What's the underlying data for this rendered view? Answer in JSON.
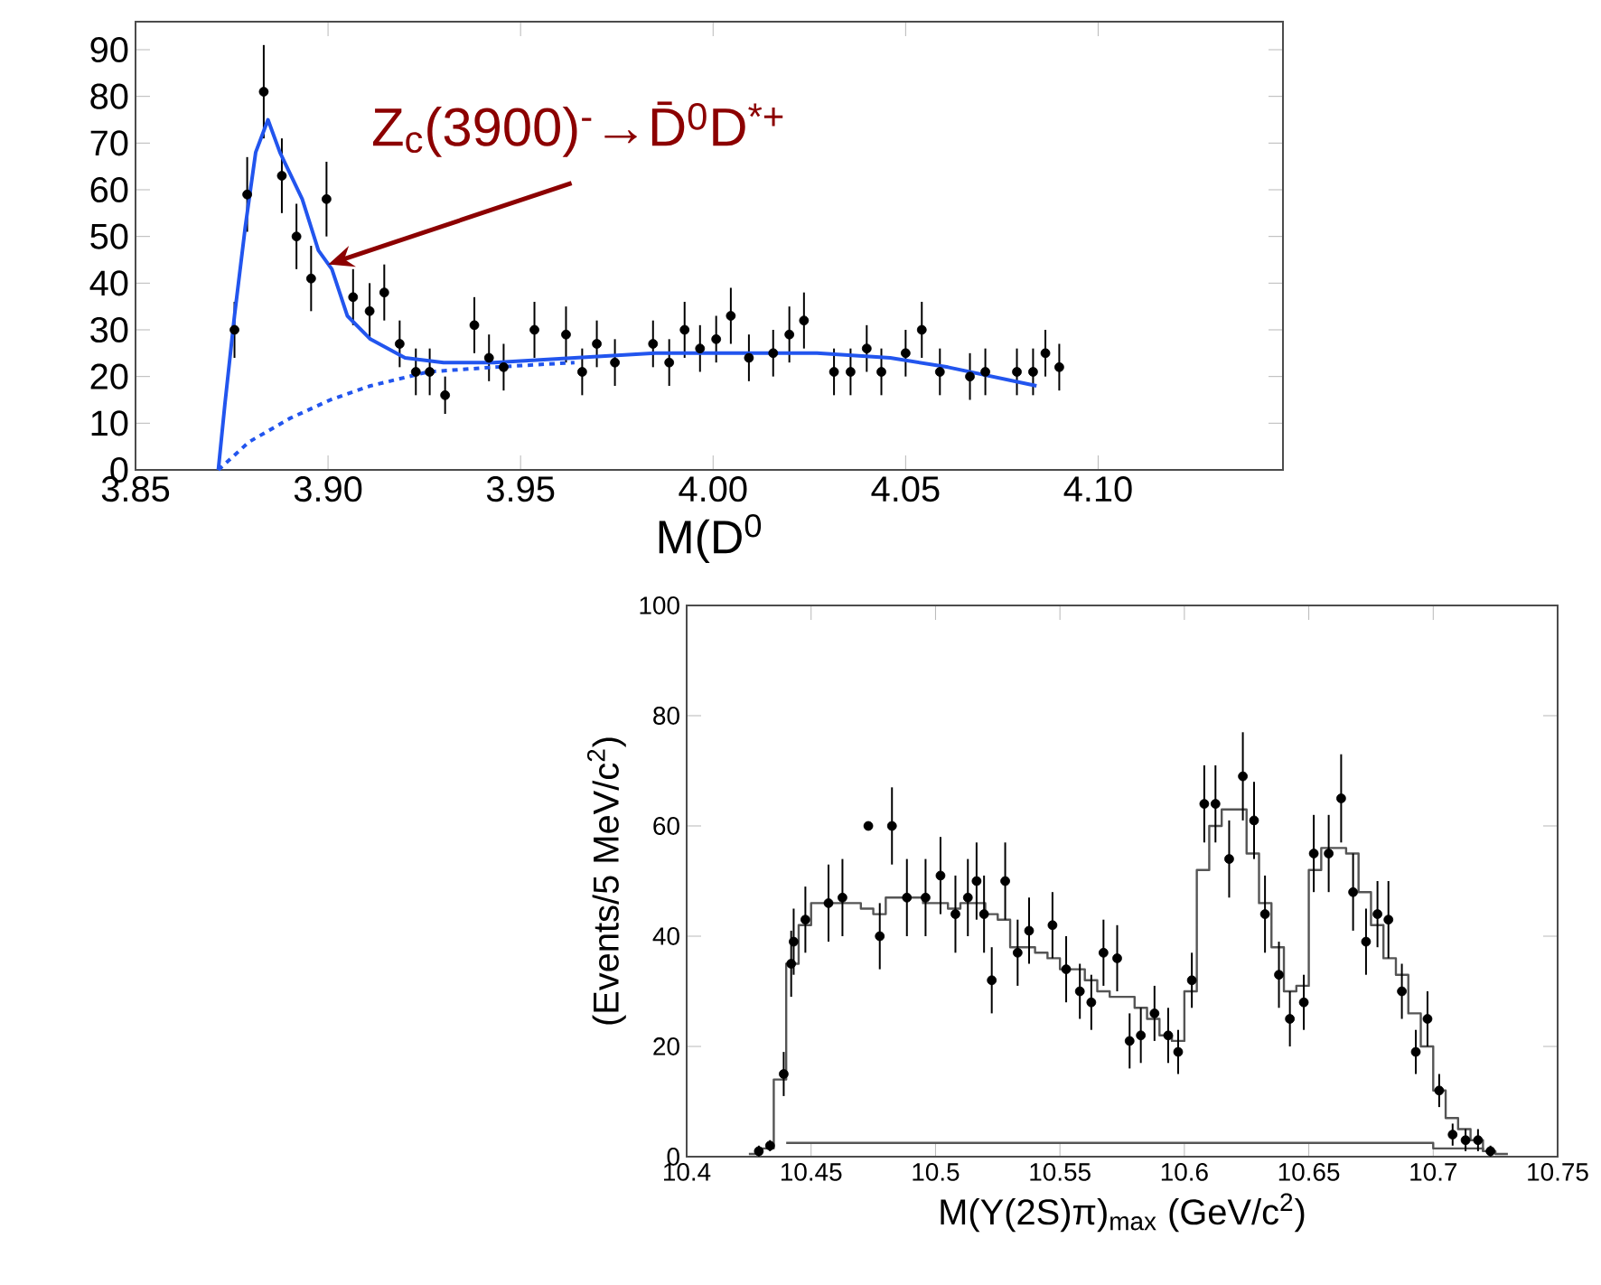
{
  "chart_data": [
    {
      "type": "scatter",
      "xlabel": "M(D$^{0}$",
      "xlim": [
        3.85,
        4.148
      ],
      "ylim": [
        0,
        96
      ],
      "xticks": [
        {
          "value": 3.85,
          "label": "3.85"
        },
        {
          "value": 3.9,
          "label": "3.90"
        },
        {
          "value": 3.95,
          "label": "3.95"
        },
        {
          "value": 4.0,
          "label": "4.00"
        },
        {
          "value": 4.05,
          "label": "4.05"
        },
        {
          "value": 4.1,
          "label": "4.10"
        }
      ],
      "yticks": [
        0,
        10,
        20,
        30,
        40,
        50,
        60,
        70,
        80,
        90
      ],
      "annotations": [
        {
          "text": "Z$_{c}$(3900)$^{-}$→D̄$^{0}$D$^{*+}$",
          "x": 3.9,
          "y": 44
        }
      ],
      "series": [
        {
          "type": "scatter",
          "marker": "circle",
          "color": "#000000",
          "x": [
            3.8757,
            3.879,
            3.8833,
            3.888,
            3.8918,
            3.8956,
            3.8996,
            3.9065,
            3.9108,
            3.9146,
            3.9186,
            3.9228,
            3.9264,
            3.9304,
            3.938,
            3.9418,
            3.9456,
            3.9536,
            3.9618,
            3.966,
            3.9698,
            3.9745,
            3.9844,
            3.9886,
            3.9926,
            3.9966,
            4.0008,
            4.0046,
            4.0093,
            4.0156,
            4.0198,
            4.0236,
            4.0314,
            4.0357,
            4.0399,
            4.0437,
            4.05,
            4.0542,
            4.0589,
            4.0667,
            4.0707,
            4.0789,
            4.0831,
            4.0863,
            4.0899
          ],
          "values": [
            30,
            59,
            81,
            63,
            50,
            41,
            58,
            37,
            34,
            38,
            27,
            21,
            21,
            16,
            31,
            24,
            22,
            30,
            29,
            21,
            27,
            23,
            27,
            23,
            30,
            26,
            28,
            33,
            24,
            25,
            29,
            32,
            21,
            21,
            26,
            21,
            25,
            30,
            21,
            20,
            21,
            21,
            21,
            25,
            22
          ],
          "errors": [
            6,
            8,
            10,
            8,
            7,
            7,
            8,
            6,
            6,
            6,
            5,
            5,
            5,
            4,
            6,
            5,
            5,
            6,
            6,
            5,
            5,
            5,
            5,
            5,
            6,
            5,
            5,
            6,
            5,
            5,
            6,
            6,
            5,
            5,
            5,
            5,
            5,
            6,
            5,
            5,
            5,
            5,
            5,
            5,
            5
          ]
        },
        {
          "type": "line",
          "marker": "none",
          "line_style": "solid",
          "color": "#2255ee",
          "x": [
            3.8715,
            3.8732,
            3.8757,
            3.8785,
            3.8812,
            3.8844,
            3.8875,
            3.8933,
            3.8975,
            3.901,
            3.905,
            3.911,
            3.92,
            3.93,
            3.943,
            3.964,
            3.985,
            4.006,
            4.027,
            4.046,
            4.061,
            4.084
          ],
          "values": [
            0,
            14,
            33,
            52,
            68,
            75,
            68,
            58,
            47,
            43,
            33,
            28,
            24,
            23,
            23,
            24,
            25,
            25,
            25,
            24,
            22,
            18
          ]
        },
        {
          "type": "line",
          "marker": "none",
          "line_style": "dashed",
          "color": "#2255ee",
          "x": [
            3.8715,
            3.8795,
            3.89,
            3.9006,
            3.911,
            3.926,
            3.943,
            3.964
          ],
          "values": [
            0,
            6,
            11,
            15,
            18,
            21,
            22,
            23
          ]
        }
      ]
    },
    {
      "type": "scatter",
      "xlabel": "M(Υ(2S)π)$_{max}$  (GeV/c$^{2}$)",
      "ylabel": "(Events/5 MeV/c$^{2}$)",
      "xlim": [
        10.4,
        10.75
      ],
      "ylim": [
        0,
        100
      ],
      "xticks": [
        10.4,
        10.45,
        10.5,
        10.55,
        10.6,
        10.65,
        10.7,
        10.75
      ],
      "yticks": [
        0,
        20,
        40,
        60,
        80,
        100
      ],
      "series": [
        {
          "type": "step",
          "marker": "none",
          "color": "#555555",
          "x": [
            10.425,
            10.43,
            10.435,
            10.44,
            10.445,
            10.45,
            10.455,
            10.46,
            10.465,
            10.47,
            10.475,
            10.48,
            10.485,
            10.49,
            10.495,
            10.5,
            10.505,
            10.51,
            10.515,
            10.52,
            10.525,
            10.53,
            10.535,
            10.54,
            10.545,
            10.55,
            10.555,
            10.56,
            10.565,
            10.57,
            10.575,
            10.58,
            10.585,
            10.59,
            10.595,
            10.6,
            10.605,
            10.61,
            10.615,
            10.62,
            10.625,
            10.63,
            10.635,
            10.64,
            10.645,
            10.65,
            10.655,
            10.66,
            10.665,
            10.67,
            10.675,
            10.68,
            10.685,
            10.69,
            10.695,
            10.7,
            10.705,
            10.71,
            10.715,
            10.72,
            10.725,
            10.73
          ],
          "values": [
            0.5,
            1.5,
            14,
            35,
            42,
            46,
            46,
            46,
            46,
            45,
            44,
            47,
            47,
            47,
            46,
            46,
            45,
            46,
            46,
            44,
            43,
            38,
            38,
            37,
            36,
            34,
            34,
            32,
            30,
            29,
            29,
            27,
            25,
            22,
            21,
            30,
            52,
            60,
            63,
            63,
            55,
            46,
            38,
            30,
            31,
            52,
            56,
            56,
            55,
            48,
            42,
            36,
            33,
            26,
            20,
            12,
            7,
            5,
            3,
            1,
            0.5,
            0.5
          ]
        },
        {
          "type": "step",
          "marker": "none",
          "color": "#555555",
          "x": [
            10.44,
            10.6,
            10.7,
            10.72
          ],
          "values": [
            2.5,
            2.5,
            1.5,
            1
          ]
        },
        {
          "type": "scatter",
          "marker": "circle",
          "color": "#000000",
          "x": [
            10.429,
            10.4335,
            10.439,
            10.442,
            10.443,
            10.4477,
            10.457,
            10.4626,
            10.473,
            10.4776,
            10.4825,
            10.4885,
            10.496,
            10.502,
            10.508,
            10.513,
            10.5165,
            10.5195,
            10.5226,
            10.528,
            10.533,
            10.5376,
            10.547,
            10.5525,
            10.558,
            10.5626,
            10.5675,
            10.573,
            10.578,
            10.5825,
            10.588,
            10.5935,
            10.5975,
            10.603,
            10.608,
            10.6125,
            10.618,
            10.6235,
            10.628,
            10.6324,
            10.638,
            10.6424,
            10.648,
            10.652,
            10.658,
            10.663,
            10.6678,
            10.673,
            10.6776,
            10.682,
            10.6874,
            10.693,
            10.6977,
            10.7024,
            10.7078,
            10.713,
            10.718,
            10.723
          ],
          "values": [
            1,
            2,
            15,
            35,
            39,
            43,
            46,
            47,
            60,
            40,
            60,
            47,
            47,
            51,
            44,
            47,
            50,
            44,
            32,
            50,
            37,
            41,
            42,
            34,
            30,
            28,
            37,
            36,
            21,
            22,
            26,
            22,
            19,
            32,
            64,
            64,
            54,
            69,
            61,
            44,
            33,
            25,
            28,
            55,
            55,
            65,
            48,
            39,
            44,
            43,
            30,
            19,
            25,
            12,
            4,
            3,
            3,
            1
          ],
          "errors": [
            1,
            1,
            4,
            6,
            6,
            6,
            7,
            7,
            0,
            6,
            7,
            7,
            7,
            7,
            7,
            7,
            7,
            7,
            6,
            7,
            6,
            6,
            6,
            6,
            5,
            5,
            6,
            6,
            5,
            5,
            5,
            5,
            4,
            5,
            7,
            7,
            7,
            8,
            7,
            7,
            6,
            5,
            5,
            7,
            7,
            8,
            7,
            6,
            6,
            7,
            5,
            4,
            5,
            3,
            2,
            2,
            2,
            1
          ]
        }
      ]
    }
  ]
}
